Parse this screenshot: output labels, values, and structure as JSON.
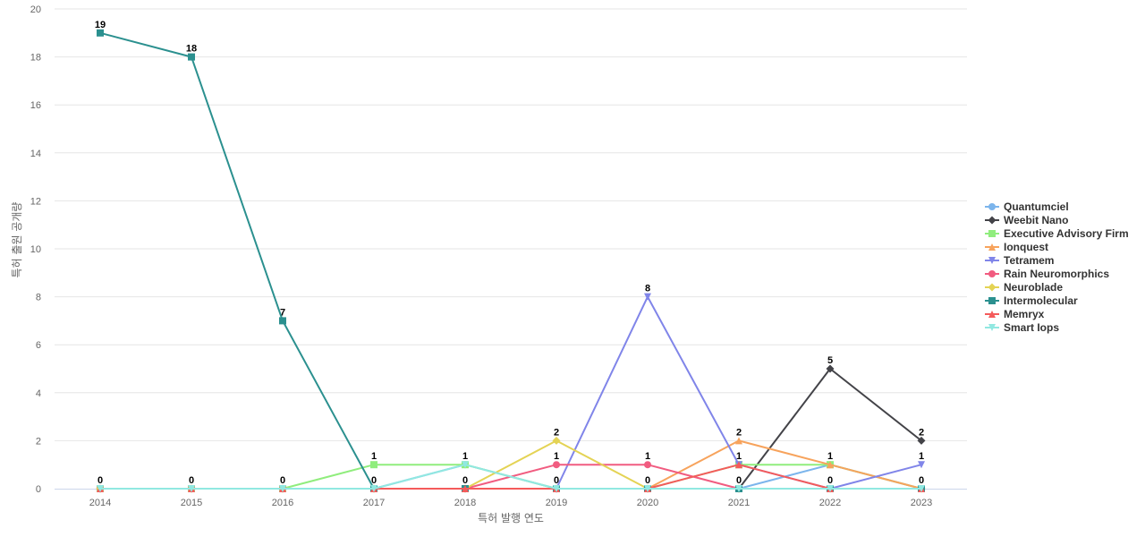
{
  "chart_data": {
    "type": "line",
    "xlabel": "특허 발행 연도",
    "ylabel": "특허 출원 공개량",
    "ylim": [
      0,
      20
    ],
    "yticks": [
      0,
      2,
      4,
      6,
      8,
      10,
      12,
      14,
      16,
      18,
      20
    ],
    "grid": true,
    "legend_position": "right",
    "x": [
      "2014",
      "2015",
      "2016",
      "2017",
      "2018",
      "2019",
      "2020",
      "2021",
      "2022",
      "2023"
    ],
    "series": [
      {
        "name": "Quantumciel",
        "color": "#7cb5ec",
        "marker": "circle",
        "values": [
          0,
          0,
          0,
          0,
          1,
          0,
          0,
          0,
          1,
          0
        ]
      },
      {
        "name": "Weebit Nano",
        "color": "#434348",
        "marker": "diamond",
        "values": [
          0,
          0,
          0,
          0,
          0,
          0,
          0,
          0,
          5,
          2
        ]
      },
      {
        "name": "Executive Advisory Firm",
        "color": "#90ed7d",
        "marker": "square",
        "values": [
          0,
          0,
          0,
          1,
          1,
          0,
          0,
          1,
          1,
          0
        ]
      },
      {
        "name": "Ionquest",
        "color": "#f7a35c",
        "marker": "triangle",
        "values": [
          0,
          0,
          0,
          0,
          0,
          0,
          0,
          2,
          1,
          0
        ]
      },
      {
        "name": "Tetramem",
        "color": "#8085e9",
        "marker": "triangle-down",
        "values": [
          0,
          0,
          0,
          0,
          0,
          0,
          8,
          1,
          0,
          1
        ]
      },
      {
        "name": "Rain Neuromorphics",
        "color": "#f15c80",
        "marker": "circle",
        "values": [
          0,
          0,
          0,
          0,
          0,
          1,
          1,
          0,
          0,
          0
        ]
      },
      {
        "name": "Neuroblade",
        "color": "#e4d354",
        "marker": "diamond",
        "values": [
          0,
          0,
          0,
          0,
          0,
          2,
          0,
          0,
          0,
          0
        ]
      },
      {
        "name": "Intermolecular",
        "color": "#2b908f",
        "marker": "square",
        "values": [
          19,
          18,
          7,
          0,
          0,
          0,
          0,
          0,
          0,
          0
        ]
      },
      {
        "name": "Memryx",
        "color": "#f45b5b",
        "marker": "triangle",
        "values": [
          0,
          0,
          0,
          0,
          0,
          0,
          0,
          1,
          0,
          0
        ]
      },
      {
        "name": "Smart Iops",
        "color": "#91e8e1",
        "marker": "triangle-down",
        "values": [
          0,
          0,
          0,
          0,
          1,
          0,
          0,
          0,
          0,
          0
        ]
      }
    ],
    "data_labels": [
      {
        "x": "2014",
        "text": "19",
        "value": 19
      },
      {
        "x": "2015",
        "text": "18",
        "value": 18
      },
      {
        "x": "2016",
        "text": "7",
        "value": 7
      },
      {
        "x": "2017",
        "text": "1",
        "value": 1
      },
      {
        "x": "2018",
        "text": "1",
        "value": 1
      },
      {
        "x": "2019",
        "text": "2",
        "value": 2
      },
      {
        "x": "2019",
        "text": "1",
        "value": 1
      },
      {
        "x": "2020",
        "text": "8",
        "value": 8
      },
      {
        "x": "2020",
        "text": "1",
        "value": 1
      },
      {
        "x": "2021",
        "text": "2",
        "value": 2
      },
      {
        "x": "2021",
        "text": "1",
        "value": 1
      },
      {
        "x": "2022",
        "text": "5",
        "value": 5
      },
      {
        "x": "2022",
        "text": "1",
        "value": 1
      },
      {
        "x": "2023",
        "text": "2",
        "value": 2
      },
      {
        "x": "2023",
        "text": "1",
        "value": 1
      },
      {
        "x": "2014",
        "text": "0",
        "value": 0
      },
      {
        "x": "2015",
        "text": "0",
        "value": 0
      },
      {
        "x": "2016",
        "text": "0",
        "value": 0
      },
      {
        "x": "2017",
        "text": "0",
        "value": 0
      },
      {
        "x": "2018",
        "text": "0",
        "value": 0
      },
      {
        "x": "2019",
        "text": "0",
        "value": 0
      },
      {
        "x": "2020",
        "text": "0",
        "value": 0
      },
      {
        "x": "2021",
        "text": "0",
        "value": 0
      },
      {
        "x": "2022",
        "text": "0",
        "value": 0
      },
      {
        "x": "2023",
        "text": "0",
        "value": 0
      }
    ]
  }
}
